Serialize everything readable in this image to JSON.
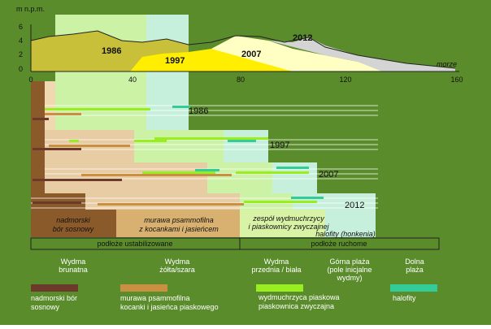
{
  "profile": {
    "y_axis_label": "m n.p.m.",
    "yticks": [
      0,
      2,
      4,
      6
    ],
    "xticks": [
      0,
      40,
      80,
      120,
      160
    ],
    "years": [
      "1986",
      "1997",
      "2007",
      "2012"
    ],
    "sea_label": "morze"
  },
  "timeline_years": [
    "1986",
    "1997",
    "2007",
    "2012"
  ],
  "communities": [
    {
      "lines": [
        "nadmorski",
        "bór sosnowy"
      ]
    },
    {
      "lines": [
        "murawa psammofilna",
        "z kocankami i jasieńcem"
      ]
    },
    {
      "lines": [
        "zespół wydmuchrzycy",
        "i piaskownicy zwyczajnej"
      ]
    },
    {
      "lines": [
        "halofity (honkenia)"
      ]
    }
  ],
  "substrate": [
    "podłoże ustabilizowane",
    "podłoże ruchome"
  ],
  "zones": [
    {
      "lines": [
        "Wydma",
        "brunatna"
      ]
    },
    {
      "lines": [
        "Wydma",
        "żółta/szara"
      ]
    },
    {
      "lines": [
        "Wydma",
        "przednia / biała"
      ]
    },
    {
      "lines": [
        "Górna plaża",
        "(pole inicjalne",
        "wydmy)"
      ]
    },
    {
      "lines": [
        "Dolna",
        "plaża"
      ]
    }
  ],
  "legend": [
    {
      "lines": [
        "nadmorski bór",
        "sosnowy"
      ]
    },
    {
      "lines": [
        "murawa psammofilna",
        "kocanki i jasieńca piaskowego"
      ]
    },
    {
      "lines": [
        "wydmuchrzyca piaskowa",
        "piaskownica zwyczajna"
      ]
    },
    {
      "lines": [
        "halofity"
      ]
    }
  ]
}
